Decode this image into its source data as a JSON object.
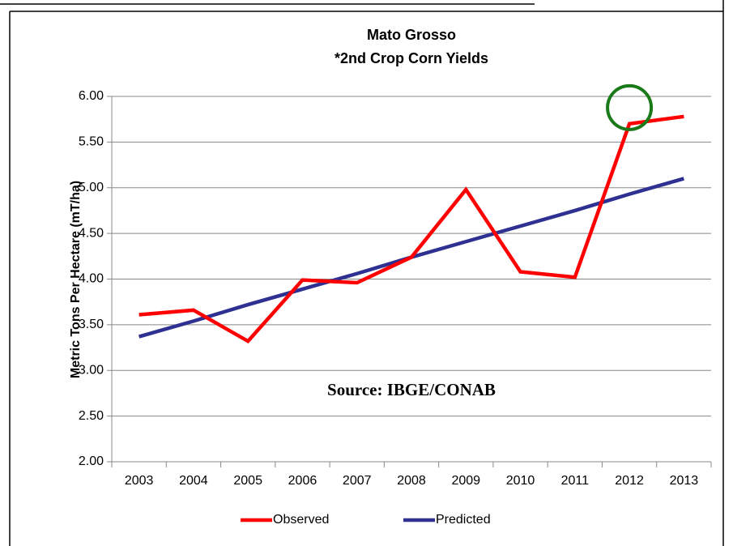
{
  "chart_data": {
    "type": "line",
    "title": "Mato Grosso",
    "subtitle": "*2nd Crop Corn Yields",
    "y_label": "Metric Tons Per Hectare (mT/ha)",
    "annotation": "Source: IBGE/CONAB",
    "categories": [
      "2003",
      "2004",
      "2005",
      "2006",
      "2007",
      "2008",
      "2009",
      "2010",
      "2011",
      "2012",
      "2013"
    ],
    "series": [
      {
        "name": "Observed",
        "color": "#ff0000",
        "values": [
          3.61,
          3.66,
          3.32,
          3.99,
          3.96,
          4.24,
          4.98,
          4.08,
          4.02,
          5.7,
          5.78
        ]
      },
      {
        "name": "Predicted",
        "color": "#2e3192",
        "values": [
          3.37,
          3.54,
          3.72,
          3.89,
          4.06,
          4.24,
          4.41,
          4.58,
          4.75,
          4.93,
          5.1
        ]
      }
    ],
    "ylim": [
      2,
      6
    ],
    "yticks": [
      {
        "value": 2,
        "label": "2.00"
      },
      {
        "value": 2.5,
        "label": "2.50"
      },
      {
        "value": 3,
        "label": "3.00"
      },
      {
        "value": 3.5,
        "label": "3.50"
      },
      {
        "value": 4,
        "label": "4.00"
      },
      {
        "value": 4.5,
        "label": "4.50"
      },
      {
        "value": 5,
        "label": "5.00"
      },
      {
        "value": 5.5,
        "label": "5.50"
      },
      {
        "value": 6,
        "label": "6.00"
      }
    ],
    "grid": true,
    "legend": "bottom"
  }
}
